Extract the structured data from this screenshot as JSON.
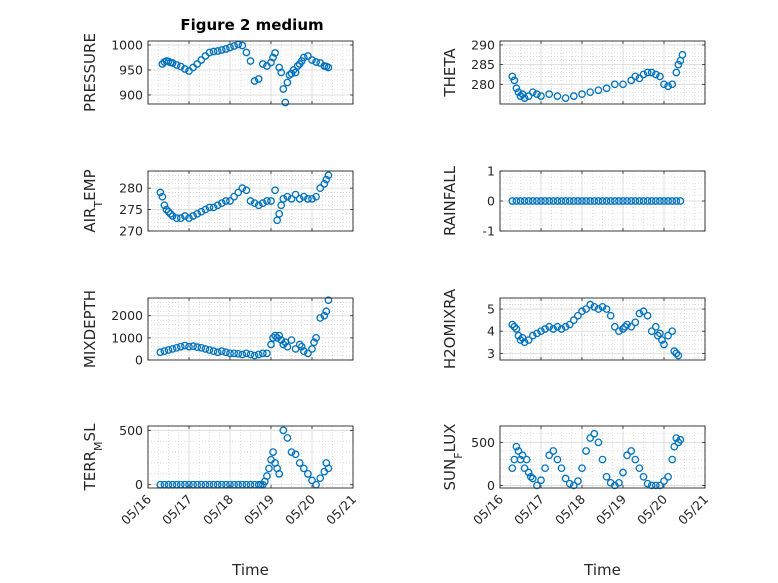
{
  "figure_title": "Figure 2 medium",
  "colors": {
    "marker": "#0072BD",
    "axis": "#262626",
    "grid": "#c8c8c8"
  },
  "x_tick_labels": [
    "05/16",
    "05/17",
    "05/18",
    "05/19",
    "05/20",
    "05/21"
  ],
  "chart_data": [
    {
      "type": "scatter",
      "title": "Figure 2 medium",
      "ylabel": "PRESSURE",
      "ylabel_sub": "",
      "xlabel": "",
      "ylim": [
        882,
        1008
      ],
      "yticks": [
        900,
        950,
        1000
      ],
      "ytick_labels": [
        "900",
        "950",
        "1000"
      ],
      "show_x_ticklabels": false,
      "x": [
        0.35,
        0.4,
        0.45,
        0.5,
        0.55,
        0.6,
        0.7,
        0.8,
        0.9,
        1.0,
        1.1,
        1.2,
        1.3,
        1.4,
        1.5,
        1.6,
        1.7,
        1.8,
        1.9,
        2.0,
        2.1,
        2.2,
        2.3,
        2.4,
        2.5,
        2.6,
        2.7,
        2.8,
        2.9,
        3.0,
        3.05,
        3.1,
        3.2,
        3.25,
        3.3,
        3.35,
        3.4,
        3.45,
        3.5,
        3.55,
        3.6,
        3.65,
        3.7,
        3.75,
        3.8,
        3.9,
        4.0,
        4.1,
        4.2,
        4.3,
        4.35,
        4.4
      ],
      "y": [
        962,
        966,
        968,
        967,
        965,
        964,
        960,
        957,
        952,
        948,
        955,
        962,
        970,
        978,
        985,
        987,
        988,
        990,
        992,
        995,
        998,
        1001,
        999,
        985,
        968,
        928,
        932,
        962,
        958,
        965,
        975,
        984,
        955,
        945,
        912,
        885,
        925,
        940,
        943,
        950,
        945,
        958,
        962,
        968,
        975,
        978,
        970,
        966,
        964,
        958,
        957,
        955
      ]
    },
    {
      "type": "scatter",
      "title": "",
      "ylabel": "THETA",
      "ylabel_sub": "",
      "xlabel": "",
      "ylim": [
        275,
        291
      ],
      "yticks": [
        280,
        285,
        290
      ],
      "ytick_labels": [
        "280",
        "285",
        "290"
      ],
      "show_x_ticklabels": false,
      "x": [
        0.3,
        0.35,
        0.4,
        0.45,
        0.5,
        0.55,
        0.6,
        0.7,
        0.8,
        0.9,
        1.0,
        1.2,
        1.4,
        1.6,
        1.8,
        2.0,
        2.2,
        2.4,
        2.6,
        2.8,
        3.0,
        3.2,
        3.3,
        3.4,
        3.5,
        3.6,
        3.7,
        3.8,
        3.9,
        4.0,
        4.1,
        4.2,
        4.3,
        4.35,
        4.4,
        4.45
      ],
      "y": [
        282,
        281,
        279,
        278,
        277,
        277.5,
        276.5,
        277,
        278,
        277.5,
        277,
        277.5,
        277,
        276.5,
        277,
        277.5,
        278,
        278.5,
        279,
        280,
        280,
        281,
        282,
        281.5,
        282.5,
        283,
        283,
        282.5,
        282,
        280,
        279.5,
        280,
        283,
        285,
        286,
        287.5
      ]
    },
    {
      "type": "scatter",
      "title": "",
      "ylabel": "AIR",
      "ylabel_sub": "T",
      "ylabel_tail": "EMP",
      "xlabel": "",
      "ylim": [
        270,
        284
      ],
      "yticks": [
        270,
        275,
        280
      ],
      "ytick_labels": [
        "270",
        "275",
        "280"
      ],
      "show_x_ticklabels": false,
      "x": [
        0.3,
        0.35,
        0.4,
        0.45,
        0.5,
        0.55,
        0.6,
        0.7,
        0.8,
        0.9,
        1.0,
        1.1,
        1.2,
        1.3,
        1.4,
        1.5,
        1.6,
        1.7,
        1.8,
        1.9,
        2.0,
        2.1,
        2.2,
        2.3,
        2.4,
        2.5,
        2.6,
        2.7,
        2.8,
        2.9,
        3.0,
        3.1,
        3.15,
        3.2,
        3.25,
        3.3,
        3.4,
        3.5,
        3.6,
        3.7,
        3.8,
        3.9,
        4.0,
        4.1,
        4.2,
        4.3,
        4.35,
        4.4
      ],
      "y": [
        279,
        278,
        276,
        275,
        274.5,
        274,
        273.5,
        273,
        273,
        273.5,
        273,
        273.5,
        274,
        274.5,
        275,
        275.5,
        275.5,
        276,
        276.5,
        277,
        277,
        278,
        279,
        280,
        279.5,
        277,
        276.5,
        276,
        276.5,
        277,
        277,
        279.5,
        272.5,
        274,
        276,
        277.5,
        278,
        277.5,
        278.5,
        277.5,
        278,
        277.5,
        277.5,
        278,
        280,
        281,
        282,
        283
      ]
    },
    {
      "type": "scatter",
      "title": "",
      "ylabel": "RAINFALL",
      "ylabel_sub": "",
      "xlabel": "",
      "ylim": [
        -1,
        1
      ],
      "yticks": [
        -1,
        0,
        1
      ],
      "ytick_labels": [
        "-1",
        "0",
        "1"
      ],
      "show_x_ticklabels": false,
      "x": [
        0.3,
        0.4,
        0.5,
        0.6,
        0.7,
        0.8,
        0.9,
        1.0,
        1.1,
        1.2,
        1.3,
        1.4,
        1.5,
        1.6,
        1.7,
        1.8,
        1.9,
        2.0,
        2.1,
        2.2,
        2.3,
        2.4,
        2.5,
        2.6,
        2.7,
        2.8,
        2.9,
        3.0,
        3.1,
        3.2,
        3.3,
        3.4,
        3.5,
        3.6,
        3.7,
        3.8,
        3.9,
        4.0,
        4.1,
        4.2,
        4.3,
        4.4
      ],
      "y": [
        0,
        0,
        0,
        0,
        0,
        0,
        0,
        0,
        0,
        0,
        0,
        0,
        0,
        0,
        0,
        0,
        0,
        0,
        0,
        0,
        0,
        0,
        0,
        0,
        0,
        0,
        0,
        0,
        0,
        0,
        0,
        0,
        0,
        0,
        0,
        0,
        0,
        0,
        0,
        0,
        0,
        0
      ]
    },
    {
      "type": "scatter",
      "title": "",
      "ylabel": "MIXDEPTH",
      "ylabel_sub": "",
      "xlabel": "",
      "ylim": [
        0,
        2800
      ],
      "yticks": [
        0,
        1000,
        2000
      ],
      "ytick_labels": [
        "0",
        "1000",
        "2000"
      ],
      "show_x_ticklabels": false,
      "x": [
        0.3,
        0.4,
        0.5,
        0.6,
        0.7,
        0.8,
        0.9,
        1.0,
        1.1,
        1.2,
        1.3,
        1.4,
        1.5,
        1.6,
        1.7,
        1.8,
        1.9,
        2.0,
        2.1,
        2.2,
        2.3,
        2.4,
        2.5,
        2.6,
        2.7,
        2.8,
        2.9,
        3.0,
        3.05,
        3.1,
        3.15,
        3.2,
        3.25,
        3.3,
        3.35,
        3.4,
        3.5,
        3.6,
        3.7,
        3.75,
        3.8,
        3.9,
        4.0,
        4.05,
        4.1,
        4.2,
        4.3,
        4.35,
        4.4
      ],
      "y": [
        350,
        400,
        450,
        500,
        550,
        600,
        650,
        600,
        620,
        580,
        550,
        500,
        450,
        400,
        350,
        400,
        350,
        300,
        300,
        280,
        250,
        300,
        250,
        200,
        250,
        300,
        300,
        700,
        1000,
        1100,
        1000,
        1100,
        900,
        700,
        800,
        600,
        900,
        500,
        700,
        600,
        400,
        300,
        500,
        800,
        1000,
        1900,
        2000,
        2200,
        2700
      ]
    },
    {
      "type": "scatter",
      "title": "",
      "ylabel": "H2OMIXRA",
      "ylabel_sub": "",
      "xlabel": "",
      "ylim": [
        2.7,
        5.5
      ],
      "yticks": [
        3,
        4,
        5
      ],
      "ytick_labels": [
        "3",
        "4",
        "5"
      ],
      "show_x_ticklabels": false,
      "x": [
        0.3,
        0.35,
        0.4,
        0.45,
        0.5,
        0.55,
        0.6,
        0.7,
        0.8,
        0.9,
        1.0,
        1.1,
        1.2,
        1.3,
        1.4,
        1.5,
        1.6,
        1.7,
        1.8,
        1.9,
        2.0,
        2.1,
        2.2,
        2.3,
        2.4,
        2.5,
        2.6,
        2.7,
        2.8,
        2.9,
        3.0,
        3.05,
        3.1,
        3.2,
        3.3,
        3.4,
        3.5,
        3.6,
        3.7,
        3.8,
        3.85,
        3.9,
        3.95,
        4.0,
        4.1,
        4.2,
        4.25,
        4.3,
        4.35
      ],
      "y": [
        4.3,
        4.2,
        4.1,
        3.8,
        3.6,
        3.7,
        3.5,
        3.6,
        3.8,
        3.9,
        4.0,
        4.1,
        4.2,
        4.1,
        4.2,
        4.1,
        4.2,
        4.3,
        4.5,
        4.7,
        4.9,
        5.0,
        5.2,
        5.1,
        5.0,
        5.1,
        5.0,
        4.7,
        4.2,
        4.0,
        4.1,
        4.2,
        4.3,
        4.2,
        4.4,
        4.8,
        4.9,
        4.7,
        4.0,
        4.2,
        3.8,
        3.9,
        3.6,
        3.4,
        3.8,
        4.0,
        3.1,
        3.0,
        2.9
      ]
    },
    {
      "type": "scatter",
      "title": "",
      "ylabel": "TERR",
      "ylabel_sub": "M",
      "ylabel_tail": "SL",
      "xlabel": "Time",
      "ylim": [
        -30,
        540
      ],
      "yticks": [
        0,
        500
      ],
      "ytick_labels": [
        "0",
        "500"
      ],
      "show_x_ticklabels": true,
      "x": [
        0.3,
        0.4,
        0.5,
        0.6,
        0.7,
        0.8,
        0.9,
        1.0,
        1.1,
        1.2,
        1.3,
        1.4,
        1.5,
        1.6,
        1.7,
        1.8,
        1.9,
        2.0,
        2.1,
        2.2,
        2.3,
        2.4,
        2.5,
        2.6,
        2.7,
        2.75,
        2.8,
        2.85,
        2.9,
        2.95,
        3.0,
        3.05,
        3.1,
        3.15,
        3.2,
        3.3,
        3.4,
        3.5,
        3.6,
        3.7,
        3.8,
        3.9,
        4.0,
        4.1,
        4.2,
        4.3,
        4.35,
        4.4
      ],
      "y": [
        0,
        0,
        0,
        0,
        0,
        0,
        0,
        0,
        0,
        0,
        0,
        0,
        0,
        0,
        0,
        0,
        0,
        0,
        0,
        0,
        0,
        0,
        0,
        0,
        0,
        0,
        0,
        30,
        80,
        150,
        230,
        300,
        200,
        150,
        100,
        500,
        430,
        300,
        280,
        200,
        150,
        100,
        40,
        0,
        60,
        120,
        200,
        150
      ]
    },
    {
      "type": "scatter",
      "title": "",
      "ylabel": "SUN",
      "ylabel_sub": "F",
      "ylabel_tail": "LUX",
      "xlabel": "Time",
      "ylim": [
        -30,
        690
      ],
      "yticks": [
        0,
        500
      ],
      "ytick_labels": [
        "0",
        "500"
      ],
      "show_x_ticklabels": true,
      "x": [
        0.3,
        0.35,
        0.4,
        0.45,
        0.5,
        0.55,
        0.6,
        0.65,
        0.7,
        0.75,
        0.8,
        0.9,
        1.0,
        1.1,
        1.2,
        1.3,
        1.4,
        1.5,
        1.6,
        1.7,
        1.8,
        1.9,
        2.0,
        2.1,
        2.2,
        2.3,
        2.4,
        2.5,
        2.6,
        2.7,
        2.8,
        2.9,
        3.0,
        3.1,
        3.2,
        3.3,
        3.4,
        3.5,
        3.6,
        3.7,
        3.8,
        3.9,
        4.0,
        4.1,
        4.2,
        4.25,
        4.3,
        4.35,
        4.4
      ],
      "y": [
        200,
        300,
        450,
        400,
        300,
        350,
        200,
        300,
        150,
        100,
        80,
        0,
        60,
        200,
        350,
        400,
        300,
        200,
        80,
        20,
        0,
        50,
        200,
        400,
        550,
        600,
        500,
        300,
        100,
        30,
        0,
        30,
        150,
        350,
        400,
        300,
        200,
        100,
        20,
        0,
        0,
        0,
        50,
        100,
        300,
        450,
        550,
        500,
        530
      ]
    }
  ]
}
